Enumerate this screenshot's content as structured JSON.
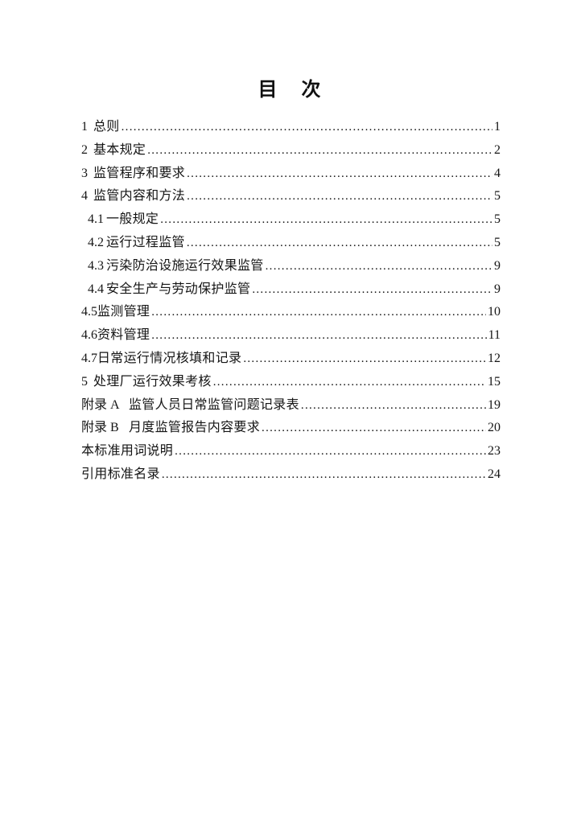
{
  "title": "目　次",
  "toc": {
    "entries": [
      {
        "number": "1",
        "title": "总则",
        "page": "1"
      },
      {
        "number": "2",
        "title": "基本规定",
        "page": "2"
      },
      {
        "number": "3",
        "title": "监管程序和要求",
        "page": "4"
      },
      {
        "number": "4",
        "title": "监管内容和方法",
        "page": "5"
      },
      {
        "number": "4.1",
        "title": "一般规定",
        "page": "5"
      },
      {
        "number": "4.2",
        "title": "运行过程监管",
        "page": "5"
      },
      {
        "number": "4.3",
        "title": "污染防治设施运行效果监管",
        "page": "9"
      },
      {
        "number": "4.4",
        "title": "安全生产与劳动保护监管",
        "page": "9"
      },
      {
        "number": "4.5",
        "title": "监测管理",
        "page": "10"
      },
      {
        "number": "4.6",
        "title": "资料管理",
        "page": "11"
      },
      {
        "number": "4.7",
        "title": "日常运行情况核填和记录",
        "page": "12"
      },
      {
        "number": "5",
        "title": "处理厂运行效果考核",
        "page": "15"
      },
      {
        "number": "附录 A",
        "title": "监管人员日常监管问题记录表",
        "page": "19"
      },
      {
        "number": "附录 B",
        "title": "月度监管报告内容要求",
        "page": "20"
      },
      {
        "number": "",
        "title": "本标准用词说明",
        "page": "23"
      },
      {
        "number": "",
        "title": "引用标准名录",
        "page": "24"
      }
    ]
  }
}
